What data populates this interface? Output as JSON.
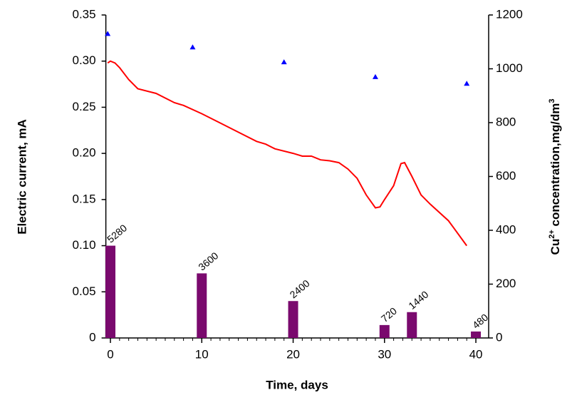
{
  "chart_data": {
    "type": "combo",
    "xlabel": "Time, days",
    "ylabel": "Electric current, mA",
    "y2label_parts": [
      "Cu",
      "2+",
      " concentration,mg/dm",
      "3"
    ],
    "xlim": [
      -0.5,
      41.4
    ],
    "xticks": [
      0,
      10,
      20,
      30,
      40
    ],
    "ylim": [
      0,
      0.35
    ],
    "yticks": [
      0,
      0.05,
      {
        "value": 0.1,
        "label": "0.10"
      },
      0.15,
      {
        "value": 0.2,
        "label": "0.20"
      },
      0.25,
      {
        "value": 0.3,
        "label": "0.30"
      },
      0.35
    ],
    "y2lim": [
      0,
      1200
    ],
    "y2ticks": [
      0,
      200,
      400,
      600,
      800,
      1000,
      1200
    ],
    "series": [
      {
        "type": "bar",
        "color": "#7a0a6e",
        "x": [
          0,
          10,
          20,
          30,
          33,
          40
        ],
        "values": [
          0.1,
          0.07,
          0.04,
          0.014,
          0.028,
          0.007
        ],
        "labels": [
          5280,
          3600,
          2400,
          720,
          1440,
          480
        ]
      },
      {
        "type": "line",
        "color": "#ff0000",
        "x": [
          -0.3,
          0,
          0.5,
          1,
          2,
          3,
          5,
          7,
          8,
          10,
          12,
          14,
          16,
          17,
          18,
          20,
          21,
          22,
          23,
          24,
          25,
          26,
          27,
          28,
          29,
          29.5,
          30,
          31,
          31.8,
          32.2,
          33,
          34,
          35,
          37,
          39
        ],
        "values": [
          0.298,
          0.3,
          0.298,
          0.293,
          0.28,
          0.27,
          0.265,
          0.255,
          0.252,
          0.243,
          0.233,
          0.223,
          0.213,
          0.21,
          0.205,
          0.2,
          0.197,
          0.197,
          0.193,
          0.192,
          0.19,
          0.183,
          0.173,
          0.155,
          0.141,
          0.142,
          0.15,
          0.165,
          0.189,
          0.19,
          0.175,
          0.155,
          0.145,
          0.127,
          0.1
        ]
      },
      {
        "type": "scatter",
        "axis": "y2",
        "color": "#0000ff",
        "x": [
          -0.3,
          9,
          19,
          29,
          39
        ],
        "values": [
          1130,
          1080,
          1025,
          970,
          945
        ]
      }
    ]
  }
}
